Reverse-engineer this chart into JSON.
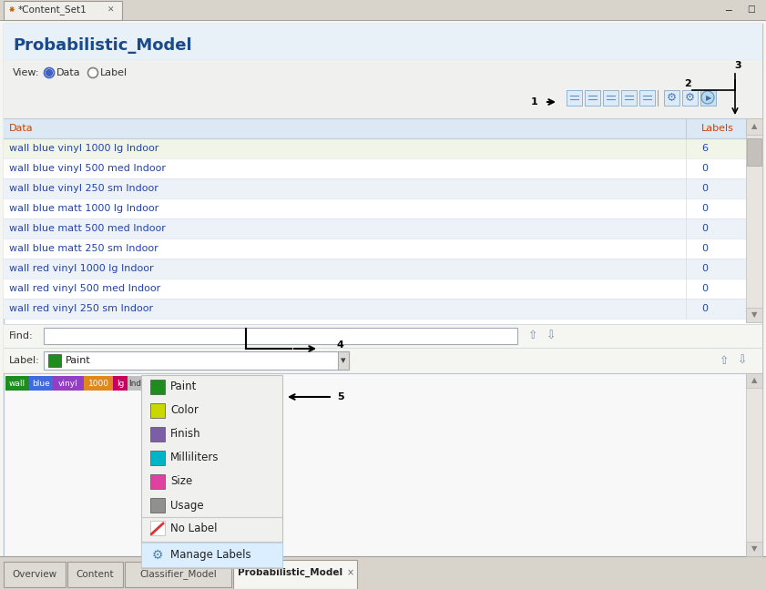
{
  "title": "Probabilistic_Model",
  "tab_title": "*Content_Set1",
  "bg_outer": "#d4cfc8",
  "bg_main": "#f5f5f2",
  "white": "#ffffff",
  "view_label": "View:",
  "table_header": [
    "Data",
    "Labels"
  ],
  "table_rows": [
    [
      "wall blue vinyl 1000 lg Indoor",
      "6"
    ],
    [
      "wall blue vinyl 500 med Indoor",
      "0"
    ],
    [
      "wall blue vinyl 250 sm Indoor",
      "0"
    ],
    [
      "wall blue matt 1000 lg Indoor",
      "0"
    ],
    [
      "wall blue matt 500 med Indoor",
      "0"
    ],
    [
      "wall blue matt 250 sm Indoor",
      "0"
    ],
    [
      "wall red vinyl 1000 lg Indoor",
      "0"
    ],
    [
      "wall red vinyl 500 med Indoor",
      "0"
    ],
    [
      "wall red vinyl 250 sm Indoor",
      "0"
    ]
  ],
  "first_row_bg": "#f0f5e8",
  "row_bg_odd": "#ffffff",
  "row_bg_even": "#edf2f8",
  "find_label": "Find:",
  "label_label": "Label:",
  "label_value": "Paint",
  "label_color": "#1e8c1e",
  "dropdown_items": [
    {
      "name": "Paint",
      "color": "#1e8c1e"
    },
    {
      "name": "Color",
      "color": "#c8d800"
    },
    {
      "name": "Finish",
      "color": "#7b5ea7"
    },
    {
      "name": "Milliliters",
      "color": "#00b4c8"
    },
    {
      "name": "Size",
      "color": "#e040a0"
    },
    {
      "name": "Usage",
      "color": "#909090"
    }
  ],
  "no_label_text": "No Label",
  "manage_labels_text": "Manage Labels",
  "token_colors": [
    "#1e8c1e",
    "#4169e1",
    "#9040c0",
    "#e08820",
    "#c80060"
  ],
  "token_labels": [
    "wall",
    "blue",
    "vinyl",
    "1000",
    "lg"
  ],
  "bottom_tabs": [
    "Overview",
    "Content",
    "Classifier_Model",
    "Probabilistic_Model"
  ],
  "active_tab": "Probabilistic_Model",
  "text_blue": "#2244aa",
  "number_color": "#2244bb",
  "title_color": "#1a4a8a",
  "header_text": "#cc4400",
  "tab_bar_bg": "#d8d4cc",
  "tab_bg_active": "#f0eeea",
  "tab_bg_inactive": "#e0dcda",
  "panel_border": "#b0b0b0",
  "table_header_bg": "#dce8f4",
  "scrollbar_bg": "#e0dcd8",
  "scrollbar_thumb": "#c0bcb8"
}
